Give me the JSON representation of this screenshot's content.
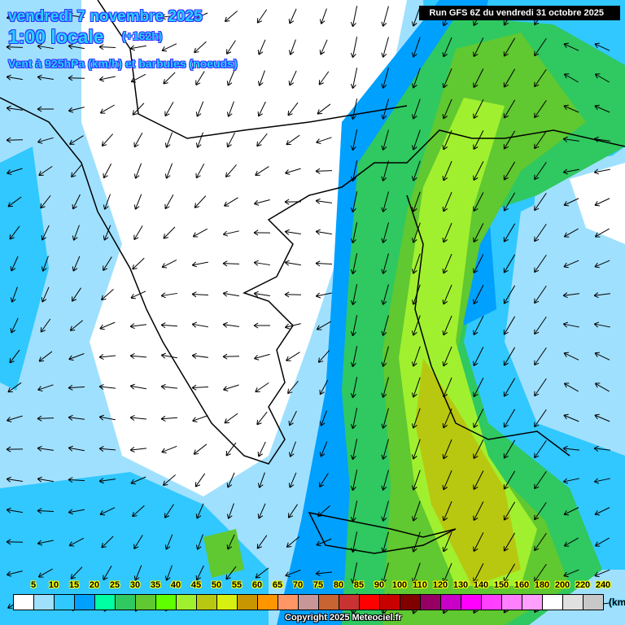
{
  "header": {
    "date": "vendredi 7 novembre 2025",
    "local_time": "1:00 locale",
    "lead_time": "(+162h)",
    "variable": "Vent à 925hPa (km/h) et barbules (noeuds)",
    "run": "Run GFS 6Z du vendredi 31 octobre 2025"
  },
  "legend": {
    "unit": "(km/h)",
    "labels": [
      "5",
      "10",
      "15",
      "20",
      "25",
      "30",
      "35",
      "40",
      "45",
      "50",
      "55",
      "60",
      "65",
      "70",
      "75",
      "80",
      "85",
      "90",
      "100",
      "110",
      "120",
      "130",
      "140",
      "150",
      "160",
      "180",
      "200",
      "220",
      "240"
    ],
    "colors": [
      "#ffffff",
      "#a0e0ff",
      "#30c8ff",
      "#00a0ff",
      "#00ffa0",
      "#30c860",
      "#60c830",
      "#60ff00",
      "#a0f030",
      "#b8c810",
      "#d8f010",
      "#c89600",
      "#ff9600",
      "#ff9664",
      "#c89696",
      "#c86432",
      "#c83232",
      "#ff0000",
      "#c80000",
      "#800000",
      "#960064",
      "#c800c8",
      "#ff00ff",
      "#ff40ff",
      "#ff80ff",
      "#ffa0ff",
      "#ffffff",
      "#e0e0e0",
      "#c8c8c8"
    ]
  },
  "copyright": "Copyright 2025 Meteociel.fr"
}
